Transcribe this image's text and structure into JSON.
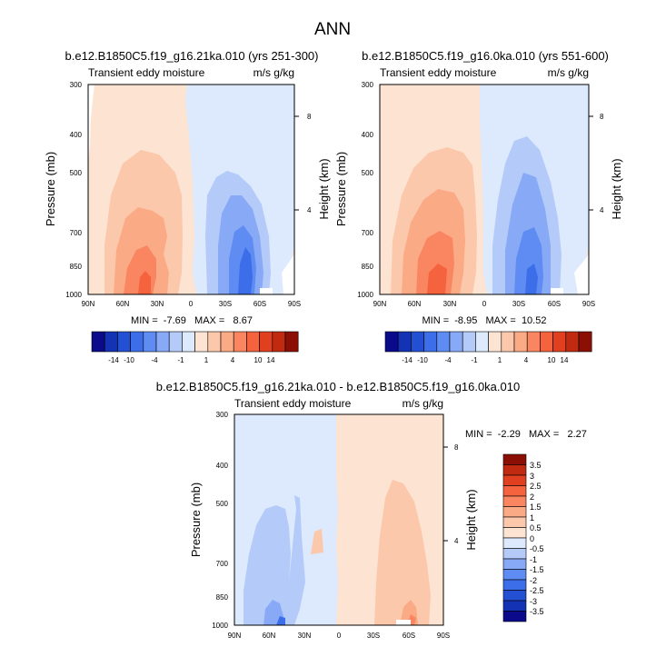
{
  "page_title": "ANN",
  "colors": {
    "blues": [
      "#0a0a8a",
      "#1432b4",
      "#2350d2",
      "#3c6eea",
      "#5f8cf2",
      "#87a9f6",
      "#b4cbfa",
      "#dde9fd"
    ],
    "reds": [
      "#fde3d2",
      "#fcc8ac",
      "#fbaa86",
      "#f98660",
      "#f4623e",
      "#e0401f",
      "#c02a10",
      "#8c0f06"
    ]
  },
  "chart_data": [
    {
      "type": "heatmap",
      "title": "b.e12.B1850C5.f19_g16.21ka.010 (yrs 251-300)",
      "subtitle_left": "Transient eddy moisture",
      "subtitle_right": "m/s g/kg",
      "ylabel": "Pressure (mb)",
      "ylabel_right": "Height (km)",
      "x_ticks": [
        "90N",
        "60N",
        "30N",
        "0",
        "30S",
        "60S",
        "90S"
      ],
      "y_ticks": [
        "300",
        "400",
        "500",
        "700",
        "850",
        "1000"
      ],
      "y_ticks_right": [
        "8",
        "4"
      ],
      "stats": "MIN =  -7.69   MAX =   8.67",
      "min": -7.69,
      "max": 8.67,
      "colorbar_labels": [
        "-14",
        "-10",
        "-4",
        "-1",
        "1",
        "4",
        "10",
        "14"
      ]
    },
    {
      "type": "heatmap",
      "title": "b.e12.B1850C5.f19_g16.0ka.010 (yrs 551-600)",
      "subtitle_left": "Transient eddy moisture",
      "subtitle_right": "m/s g/kg",
      "ylabel": "Pressure (mb)",
      "ylabel_right": "Height (km)",
      "x_ticks": [
        "90N",
        "60N",
        "30N",
        "0",
        "30S",
        "60S",
        "90S"
      ],
      "y_ticks": [
        "300",
        "400",
        "500",
        "700",
        "850",
        "1000"
      ],
      "y_ticks_right": [
        "8",
        "4"
      ],
      "stats": "MIN =  -8.95   MAX =  10.52",
      "min": -8.95,
      "max": 10.52,
      "colorbar_labels": [
        "-14",
        "-10",
        "-4",
        "-1",
        "1",
        "4",
        "10",
        "14"
      ]
    },
    {
      "type": "heatmap",
      "title": "b.e12.B1850C5.f19_g16.21ka.010 - b.e12.B1850C5.f19_g16.0ka.010",
      "subtitle_left": "Transient eddy moisture",
      "subtitle_right": "m/s g/kg",
      "ylabel": "Pressure (mb)",
      "ylabel_right": "Height (km)",
      "x_ticks": [
        "90N",
        "60N",
        "30N",
        "0",
        "30S",
        "60S",
        "90S"
      ],
      "y_ticks": [
        "300",
        "400",
        "500",
        "700",
        "850",
        "1000"
      ],
      "y_ticks_right": [
        "8",
        "4"
      ],
      "stats": "MIN =  -2.29   MAX =   2.27",
      "min": -2.29,
      "max": 2.27,
      "colorbar_labels": [
        "3.5",
        "3",
        "2.5",
        "2",
        "1.5",
        "1",
        "0.5",
        "0",
        "-0.5",
        "-1",
        "-1.5",
        "-2",
        "-2.5",
        "-3",
        "-3.5"
      ]
    }
  ]
}
